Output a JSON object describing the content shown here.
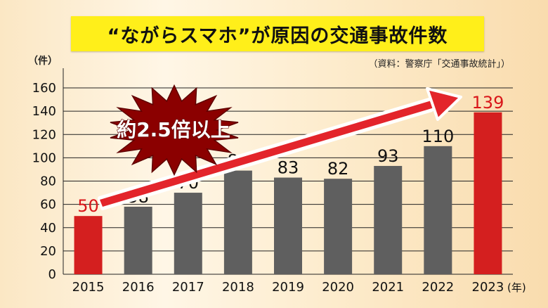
{
  "header": {
    "title": "“ながらスマホ”が原因の交通事故件数",
    "unit_label": "（件）",
    "source": "（資料：警察庁「交通事故統計」）"
  },
  "annotation": "約2.5倍以上",
  "chart_data": {
    "type": "bar",
    "categories": [
      "2015",
      "2016",
      "2017",
      "2018",
      "2019",
      "2020",
      "2021",
      "2022",
      "2023"
    ],
    "values": [
      50,
      58,
      70,
      89,
      83,
      82,
      93,
      110,
      139
    ],
    "data_labels": [
      "50",
      "58",
      "70",
      "89",
      "83",
      "82",
      "93",
      "110",
      "139"
    ],
    "ylim": [
      0,
      160
    ],
    "yticks": [
      "0",
      "20",
      "40",
      "60",
      "80",
      "100",
      "120",
      "140",
      "160"
    ],
    "x_unit": "(年)",
    "ylabel": "（件）",
    "grid": true,
    "highlight_categories": [
      "2015",
      "2023"
    ],
    "colors": {
      "highlight": "#d41f1f",
      "normal": "#5f5f5f",
      "arrow": "#e3242b",
      "burst": "#8b0000"
    }
  }
}
